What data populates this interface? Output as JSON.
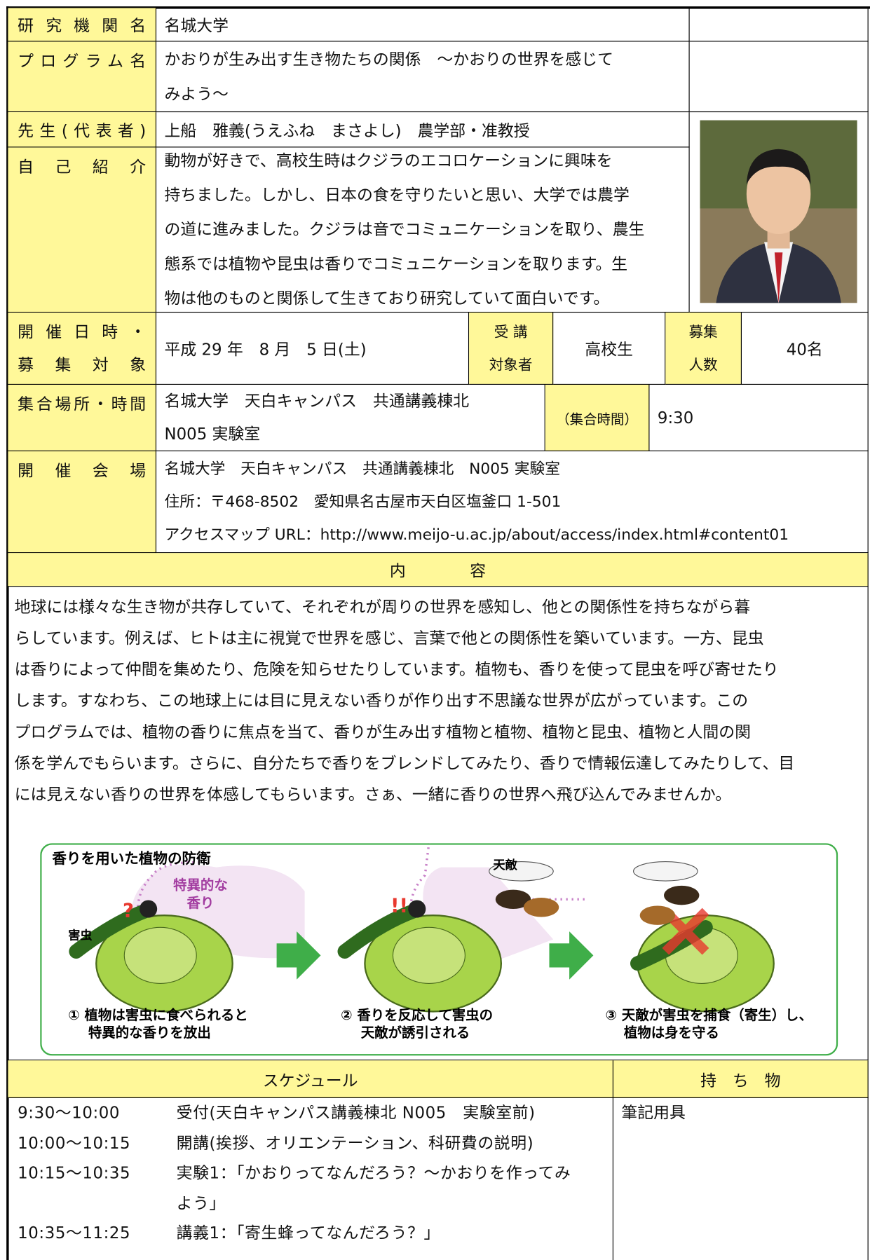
{
  "institution": {
    "label": "研究機関名",
    "value": "名城大学"
  },
  "program": {
    "label": "プログラム名",
    "lines": [
      "かおりが生み出す生き物たちの関係　～かおりの世界を感じて",
      "みよう～"
    ]
  },
  "teacher": {
    "label": "先生(代表者)",
    "value": "上船　雅義(うえふね　まさよし)　農学部・准教授"
  },
  "intro": {
    "label": "自己紹介",
    "lines": [
      "動物が好きで、高校生時はクジラのエコロケーションに興味を",
      "持ちました。しかし、日本の食を守りたいと思い、大学では農学",
      "の道に進みました。クジラは音でコミュニケーションを取り、農生",
      "態系では植物や昆虫は香りでコミュニケーションを取ります。生",
      "物は他のものと関係して生きており研究していて面白いです。"
    ]
  },
  "date": {
    "label_lines": [
      "開催日時・",
      "募集対象"
    ],
    "value": "平成 29 年　8 月　5 日(土)",
    "target_label_lines": [
      "受 講",
      "対象者"
    ],
    "target": "高校生",
    "capacity_label_lines": [
      "募集",
      "人数"
    ],
    "capacity": "40名"
  },
  "meeting": {
    "label": "集合場所・時間",
    "lines": [
      "名城大学　天白キャンパス　共通講義棟北",
      "N005 実験室"
    ],
    "time_label": "（集合時間）",
    "time": "9:30"
  },
  "venue": {
    "label": "開催会場",
    "lines": [
      "名城大学　天白キャンパス　共通講義棟北　N005 実験室",
      "住所：〒468-8502　愛知県名古屋市天白区塩釜口 1-501",
      "アクセスマップ URL：http://www.meijo-u.ac.jp/about/access/index.html#content01"
    ]
  },
  "content": {
    "header": "内　　　　容",
    "lines": [
      "地球には様々な生き物が共存していて、それぞれが周りの世界を感知し、他との関係性を持ちながら暮",
      "らしています。例えば、ヒトは主に視覚で世界を感じ、言葉で他との関係性を築いています。一方、昆虫",
      "は香りによって仲間を集めたり、危険を知らせたりしています。植物も、香りを使って昆虫を呼び寄せたり",
      "します。すなわち、この地球上には目に見えない香りが作り出す不思議な世界が広がっています。この",
      "プログラムでは、植物の香りに焦点を当て、香りが生み出す植物と植物、植物と昆虫、植物と人間の関",
      "係を学んでもらいます。さらに、自分たちで香りをブレンドしてみたり、香りで情報伝達してみたりして、目",
      "には見えない香りの世界を体感してもらいます。さぁ、一緒に香りの世界へ飛び込んでみませんか。"
    ],
    "figure": {
      "title": "香りを用いた植物の防衛",
      "scent_lines": [
        "特異的な",
        "香り"
      ],
      "pest": "害虫",
      "enemy": "天敵",
      "question": "?",
      "alert": "!!",
      "captions": [
        [
          "① 植物は害虫に食べられると",
          "特異的な香りを放出"
        ],
        [
          "② 香りを反応して害虫の",
          "天敵が誘引される"
        ],
        [
          "③ 天敵が害虫を捕食（寄生）し、",
          "植物は身を守る"
        ]
      ]
    }
  },
  "schedule": {
    "header": "スケジュール",
    "belongings_header": "持　ち　物",
    "belongings": "筆記用具",
    "items": [
      {
        "time": "9:30～10:00",
        "lines": [
          "受付(天白キャンパス講義棟北 N005　実験室前)"
        ]
      },
      {
        "time": "10:00～10:15",
        "lines": [
          "開講(挨拶、オリエンテーション、科研費の説明)"
        ]
      },
      {
        "time": "10:15～10:35",
        "lines": [
          "実験1：「かおりってなんだろう？～かおりを作ってみ",
          "よう」"
        ]
      },
      {
        "time": "10:35～11:25",
        "lines": [
          "講義1：「寄生蜂ってなんだろう？」"
        ]
      }
    ]
  }
}
